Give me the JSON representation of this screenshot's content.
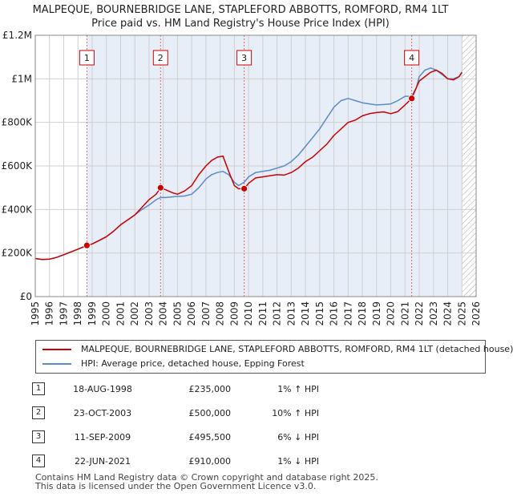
{
  "title_line1": "MALPEQUE, BOURNEBRIDGE LANE, STAPLEFORD ABBOTTS, ROMFORD, RM4 1LT",
  "title_line2": "Price paid vs. HM Land Registry's House Price Index (HPI)",
  "chart_data": {
    "type": "line",
    "title": "MALPEQUE, BOURNEBRIDGE LANE, STAPLEFORD ABBOTTS, ROMFORD, RM4 1LT — Price paid vs. HM Land Registry's House Price Index (HPI)",
    "xlim": [
      1995,
      2026
    ],
    "ylim": [
      0,
      1200000
    ],
    "x_ticks": [
      "1995",
      "1996",
      "1997",
      "1998",
      "1999",
      "2000",
      "2001",
      "2002",
      "2003",
      "2004",
      "2005",
      "2006",
      "2007",
      "2008",
      "2009",
      "2010",
      "2011",
      "2012",
      "2013",
      "2014",
      "2015",
      "2016",
      "2017",
      "2018",
      "2019",
      "2020",
      "2021",
      "2022",
      "2023",
      "2024",
      "2025",
      "2026"
    ],
    "y_ticks": [
      {
        "value": 0,
        "label": "£0"
      },
      {
        "value": 200000,
        "label": "£200K"
      },
      {
        "value": 400000,
        "label": "£400K"
      },
      {
        "value": 600000,
        "label": "£600K"
      },
      {
        "value": 800000,
        "label": "£800K"
      },
      {
        "value": 1000000,
        "label": "£1M"
      },
      {
        "value": 1200000,
        "label": "£1.2M"
      }
    ],
    "grid": true,
    "future_hatch_from": 2025.0,
    "series": [
      {
        "name": "MALPEQUE, BOURNEBRIDGE LANE, STAPLEFORD ABBOTTS, ROMFORD, RM4 1LT (detached house)",
        "color": "#cc0000",
        "x": [
          1995.0,
          1995.5,
          1996.0,
          1996.5,
          1997.0,
          1997.5,
          1998.0,
          1998.63,
          1999.0,
          1999.5,
          2000.0,
          2000.5,
          2001.0,
          2001.5,
          2002.0,
          2002.5,
          2003.0,
          2003.5,
          2003.81,
          2004.2,
          2004.6,
          2005.0,
          2005.5,
          2006.0,
          2006.5,
          2007.0,
          2007.4,
          2007.8,
          2008.2,
          2008.6,
          2009.0,
          2009.3,
          2009.69,
          2010.0,
          2010.5,
          2011.0,
          2011.5,
          2012.0,
          2012.5,
          2013.0,
          2013.5,
          2014.0,
          2014.5,
          2015.0,
          2015.5,
          2016.0,
          2016.5,
          2017.0,
          2017.5,
          2018.0,
          2018.5,
          2019.0,
          2019.5,
          2020.0,
          2020.5,
          2021.0,
          2021.47,
          2021.8,
          2022.0,
          2022.4,
          2022.8,
          2023.2,
          2023.6,
          2024.0,
          2024.4,
          2024.8,
          2025.0
        ],
        "values": [
          175000,
          170000,
          172000,
          180000,
          192000,
          205000,
          218000,
          235000,
          242000,
          258000,
          275000,
          300000,
          330000,
          352000,
          375000,
          410000,
          445000,
          470000,
          500000,
          490000,
          478000,
          470000,
          485000,
          510000,
          560000,
          600000,
          625000,
          640000,
          645000,
          575000,
          510000,
          495000,
          495500,
          520000,
          545000,
          550000,
          555000,
          560000,
          558000,
          570000,
          590000,
          620000,
          640000,
          670000,
          700000,
          740000,
          770000,
          800000,
          810000,
          830000,
          840000,
          845000,
          848000,
          840000,
          850000,
          880000,
          910000,
          960000,
          990000,
          1010000,
          1030000,
          1040000,
          1025000,
          1000000,
          995000,
          1010000,
          1030000
        ]
      },
      {
        "name": "HPI: Average price, detached house, Epping Forest",
        "color": "#5b8ac9",
        "x": [
          1995.0,
          1995.5,
          1996.0,
          1996.5,
          1997.0,
          1997.5,
          1998.0,
          1998.63,
          1999.0,
          1999.5,
          2000.0,
          2000.5,
          2001.0,
          2001.5,
          2002.0,
          2002.5,
          2003.0,
          2003.5,
          2003.81,
          2004.2,
          2004.6,
          2005.0,
          2005.5,
          2006.0,
          2006.5,
          2007.0,
          2007.4,
          2007.8,
          2008.2,
          2008.6,
          2009.0,
          2009.3,
          2009.69,
          2010.0,
          2010.5,
          2011.0,
          2011.5,
          2012.0,
          2012.5,
          2013.0,
          2013.5,
          2014.0,
          2014.5,
          2015.0,
          2015.5,
          2016.0,
          2016.5,
          2017.0,
          2017.5,
          2018.0,
          2018.5,
          2019.0,
          2019.5,
          2020.0,
          2020.5,
          2021.0,
          2021.47,
          2021.8,
          2022.0,
          2022.4,
          2022.8,
          2023.2,
          2023.6,
          2024.0,
          2024.4,
          2024.8,
          2025.0
        ],
        "values": [
          175000,
          170000,
          172000,
          180000,
          192000,
          205000,
          218000,
          233000,
          242000,
          258000,
          275000,
          300000,
          330000,
          352000,
          375000,
          400000,
          420000,
          445000,
          455000,
          455000,
          458000,
          460000,
          462000,
          470000,
          500000,
          540000,
          560000,
          570000,
          575000,
          560000,
          525000,
          510000,
          525000,
          550000,
          570000,
          575000,
          580000,
          590000,
          600000,
          620000,
          650000,
          690000,
          730000,
          770000,
          820000,
          870000,
          900000,
          910000,
          900000,
          890000,
          885000,
          880000,
          882000,
          885000,
          900000,
          920000,
          920000,
          960000,
          1010000,
          1040000,
          1050000,
          1040000,
          1020000,
          1000000,
          1000000,
          1010000,
          1030000
        ]
      }
    ],
    "sales": [
      {
        "n": "1",
        "x": 1998.63,
        "price": 235000
      },
      {
        "n": "2",
        "x": 2003.81,
        "price": 500000
      },
      {
        "n": "3",
        "x": 2009.69,
        "price": 495500
      },
      {
        "n": "4",
        "x": 2021.47,
        "price": 910000
      }
    ]
  },
  "legend": {
    "property": "MALPEQUE, BOURNEBRIDGE LANE, STAPLEFORD ABBOTTS, ROMFORD, RM4 1LT (detached house)",
    "hpi": "HPI: Average price, detached house, Epping Forest"
  },
  "transactions": [
    {
      "n": "1",
      "date": "18-AUG-1998",
      "price": "£235,000",
      "hpi": "1% ↑ HPI"
    },
    {
      "n": "2",
      "date": "23-OCT-2003",
      "price": "£500,000",
      "hpi": "10% ↑ HPI"
    },
    {
      "n": "3",
      "date": "11-SEP-2009",
      "price": "£495,500",
      "hpi": "6% ↓ HPI"
    },
    {
      "n": "4",
      "date": "22-JUN-2021",
      "price": "£910,000",
      "hpi": "1% ↓ HPI"
    }
  ],
  "footer_line1": "Contains HM Land Registry data © Crown copyright and database right 2025.",
  "footer_line2": "This data is licensed under the Open Government Licence v3.0."
}
